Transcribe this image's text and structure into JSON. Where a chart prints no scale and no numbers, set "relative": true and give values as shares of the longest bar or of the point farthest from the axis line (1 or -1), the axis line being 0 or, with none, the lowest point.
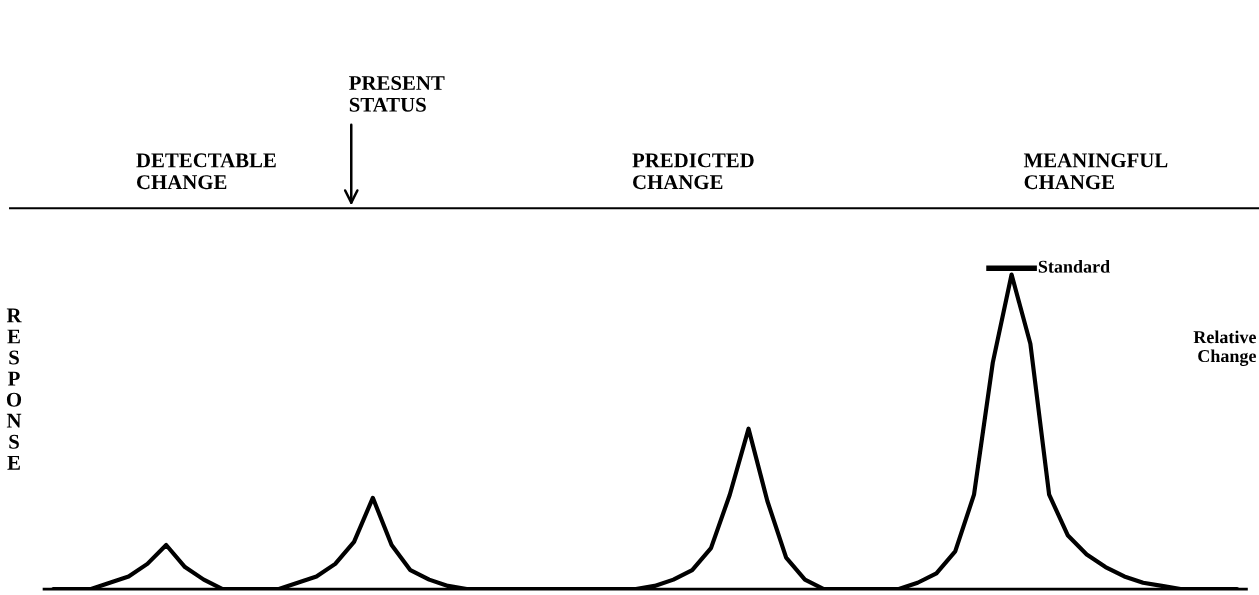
{
  "chart_data": {
    "type": "line",
    "relative": true,
    "ylabel": "RESPONSE",
    "color": "#000000",
    "marker": "none",
    "line_style": "solid",
    "legend": false,
    "categories": [
      null,
      null,
      null,
      null,
      null,
      null,
      null,
      null,
      null,
      null,
      null,
      null,
      null,
      null,
      null,
      null,
      null,
      null,
      null,
      null,
      null,
      null,
      null,
      null,
      null,
      null,
      null,
      null,
      null,
      null,
      null,
      null,
      null,
      null,
      null,
      null,
      null,
      null,
      null,
      null,
      null,
      null,
      null,
      null,
      null,
      null,
      null,
      null,
      null,
      null,
      null,
      null,
      null,
      null,
      null,
      null,
      null,
      null,
      null,
      null,
      null,
      null,
      null,
      null
    ],
    "values": [
      0,
      0,
      0.0,
      0.02,
      0.04,
      0.08,
      0.14,
      0.07,
      0.03,
      0.0,
      0,
      0,
      0.0,
      0.02,
      0.04,
      0.08,
      0.15,
      0.29,
      0.14,
      0.06,
      0.03,
      0.01,
      0.0,
      0,
      0,
      0,
      0,
      0,
      0,
      0,
      0,
      0.0,
      0.01,
      0.03,
      0.06,
      0.13,
      0.3,
      0.51,
      0.28,
      0.1,
      0.03,
      0.0,
      0,
      0,
      0,
      0.0,
      0.02,
      0.05,
      0.12,
      0.3,
      0.72,
      1.0,
      0.78,
      0.3,
      0.17,
      0.11,
      0.07,
      0.04,
      0.02,
      0.01,
      0.0,
      0,
      0,
      0
    ],
    "annotations": [
      "DETECTABLE\nCHANGE",
      "PRESENT\nSTATUS",
      "PREDICTED\nCHANGE",
      "MEANINGFUL\nCHANGE",
      "Relative\nChange",
      "Standard"
    ]
  }
}
